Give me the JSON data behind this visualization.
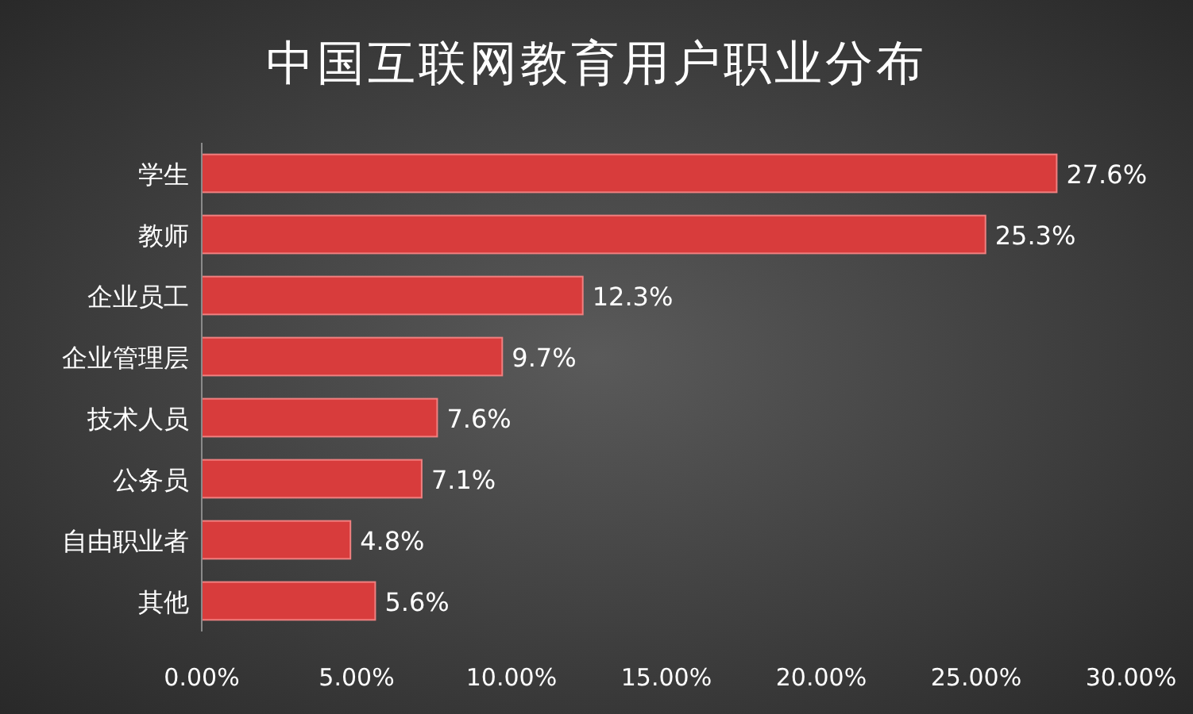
{
  "chart_data": {
    "type": "bar",
    "orientation": "horizontal",
    "title": "中国互联网教育用户职业分布",
    "categories": [
      "学生",
      "教师",
      "企业员工",
      "企业管理层",
      "技术人员",
      "公务员",
      "自由职业者",
      "其他"
    ],
    "values": [
      27.6,
      25.3,
      12.3,
      9.7,
      7.6,
      7.1,
      4.8,
      5.6
    ],
    "value_labels": [
      "27.6%",
      "25.3%",
      "12.3%",
      "9.7%",
      "7.6%",
      "7.1%",
      "4.8%",
      "5.6%"
    ],
    "color": "#d83c3c",
    "xlim": [
      0,
      30
    ],
    "xticks": [
      {
        "value": 0,
        "label": "0.00%"
      },
      {
        "value": 5,
        "label": "5.00%"
      },
      {
        "value": 10,
        "label": "10.00%"
      },
      {
        "value": 15,
        "label": "15.00%"
      },
      {
        "value": 20,
        "label": "20.00%"
      },
      {
        "value": 25,
        "label": "25.00%"
      },
      {
        "value": 30,
        "label": "30.00%"
      }
    ]
  }
}
